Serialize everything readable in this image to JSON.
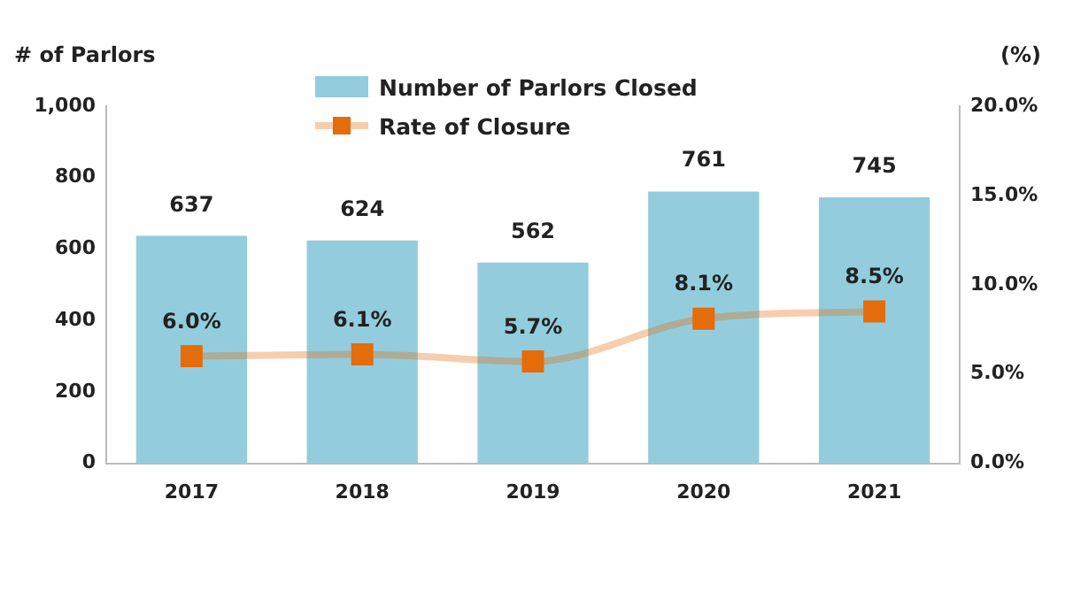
{
  "chart_data": {
    "type": "bar",
    "categories": [
      "2017",
      "2018",
      "2019",
      "2020",
      "2021"
    ],
    "ylabel": "# of Parlors",
    "y2label": "(%)",
    "series": [
      {
        "name": "Number of Parlors Closed",
        "color": "#93cddd",
        "values": [
          637,
          624,
          562,
          761,
          745
        ],
        "value_labels": [
          "637",
          "624",
          "562",
          "761",
          "745"
        ]
      },
      {
        "name": "Rate of Closure",
        "type": "line",
        "axis": "y2",
        "color": "#e46c0a",
        "marker": "square",
        "values": [
          6.0,
          6.1,
          5.7,
          8.1,
          8.5
        ],
        "value_labels": [
          "6.0%",
          "6.1%",
          "5.7%",
          "8.1%",
          "8.5%"
        ]
      }
    ],
    "ylim": [
      0,
      1000
    ],
    "yticks": [
      0,
      200,
      400,
      600,
      800,
      {
        "value": 1000,
        "label": "1,000"
      }
    ],
    "y2lim": [
      0,
      20
    ],
    "y2ticks": [
      {
        "value": 0,
        "label": "0.0%"
      },
      {
        "value": 5,
        "label": "5.0%"
      },
      {
        "value": 10,
        "label": "10.0%"
      },
      {
        "value": 15,
        "label": "15.0%"
      },
      {
        "value": 20,
        "label": "20.0%"
      }
    ],
    "grid": false,
    "legend": "top"
  }
}
